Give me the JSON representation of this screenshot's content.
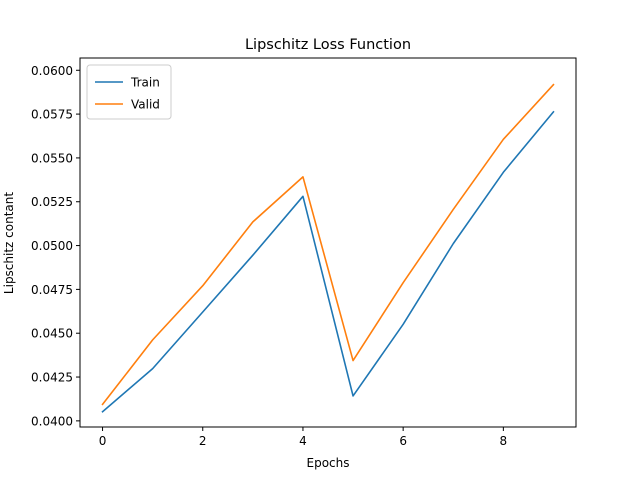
{
  "chart_data": {
    "type": "line",
    "title": "Lipschitz Loss Function",
    "xlabel": "Epochs",
    "ylabel": "Lipschitz contant",
    "x": [
      0,
      1,
      2,
      3,
      4,
      5,
      6,
      7,
      8,
      9
    ],
    "xlim": [
      -0.45,
      9.45
    ],
    "ylim": [
      0.03965,
      0.0607
    ],
    "x_ticks": [
      0,
      2,
      4,
      6,
      8
    ],
    "x_tick_labels": [
      "0",
      "2",
      "4",
      "6",
      "8"
    ],
    "y_ticks": [
      0.04,
      0.0425,
      0.045,
      0.0475,
      0.05,
      0.0525,
      0.055,
      0.0575,
      0.06
    ],
    "y_tick_labels": [
      "0.0400",
      "0.0425",
      "0.0450",
      "0.0475",
      "0.0500",
      "0.0525",
      "0.0550",
      "0.0575",
      "0.0600"
    ],
    "grid": false,
    "legend_position": "top-left",
    "series": [
      {
        "name": "Train",
        "color": "#1f77b4",
        "values": [
          0.04052,
          0.04298,
          0.04621,
          0.04945,
          0.05281,
          0.04142,
          0.04551,
          0.05011,
          0.05418,
          0.05763
        ]
      },
      {
        "name": "Valid",
        "color": "#ff7f0e",
        "values": [
          0.04094,
          0.04462,
          0.04771,
          0.05135,
          0.05392,
          0.04344,
          0.04788,
          0.05206,
          0.05606,
          0.05918
        ]
      }
    ]
  }
}
